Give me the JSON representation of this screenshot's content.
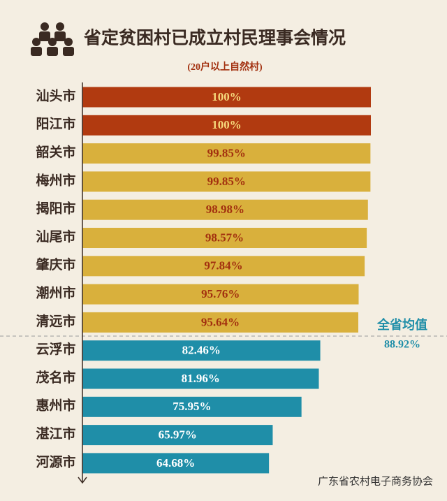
{
  "chart_data": {
    "type": "bar",
    "orientation": "horizontal",
    "title": "省定贫困村已成立村民理事会情况",
    "subtitle": "(20户以上自然村)",
    "categories": [
      "汕头市",
      "阳江市",
      "韶关市",
      "梅州市",
      "揭阳市",
      "汕尾市",
      "肇庆市",
      "潮州市",
      "清远市",
      "云浮市",
      "茂名市",
      "惠州市",
      "湛江市",
      "河源市"
    ],
    "values": [
      100,
      100,
      99.85,
      99.85,
      98.98,
      98.57,
      97.84,
      95.76,
      95.64,
      82.46,
      81.96,
      75.95,
      65.97,
      64.68
    ],
    "value_labels": [
      "100%",
      "100%",
      "99.85%",
      "99.85%",
      "98.98%",
      "98.57%",
      "97.84%",
      "95.76%",
      "95.64%",
      "82.46%",
      "81.96%",
      "75.95%",
      "65.97%",
      "64.68%"
    ],
    "colors": [
      "#b13a10",
      "#b13a10",
      "#d9b03c",
      "#d9b03c",
      "#d9b03c",
      "#d9b03c",
      "#d9b03c",
      "#d9b03c",
      "#d9b03c",
      "#1f8ea8",
      "#1f8ea8",
      "#1f8ea8",
      "#1f8ea8",
      "#1f8ea8"
    ],
    "label_colors": [
      "#f6d97c",
      "#f6d97c",
      "#a2300f",
      "#a2300f",
      "#a2300f",
      "#a2300f",
      "#a2300f",
      "#a2300f",
      "#a2300f",
      "#ffffff",
      "#ffffff",
      "#ffffff",
      "#ffffff",
      "#ffffff"
    ],
    "xlim": [
      0,
      100
    ],
    "average": {
      "label": "全省均值",
      "value": 88.92,
      "value_label": "88.92%"
    },
    "watermark": "广东省农村电子商务协会"
  }
}
